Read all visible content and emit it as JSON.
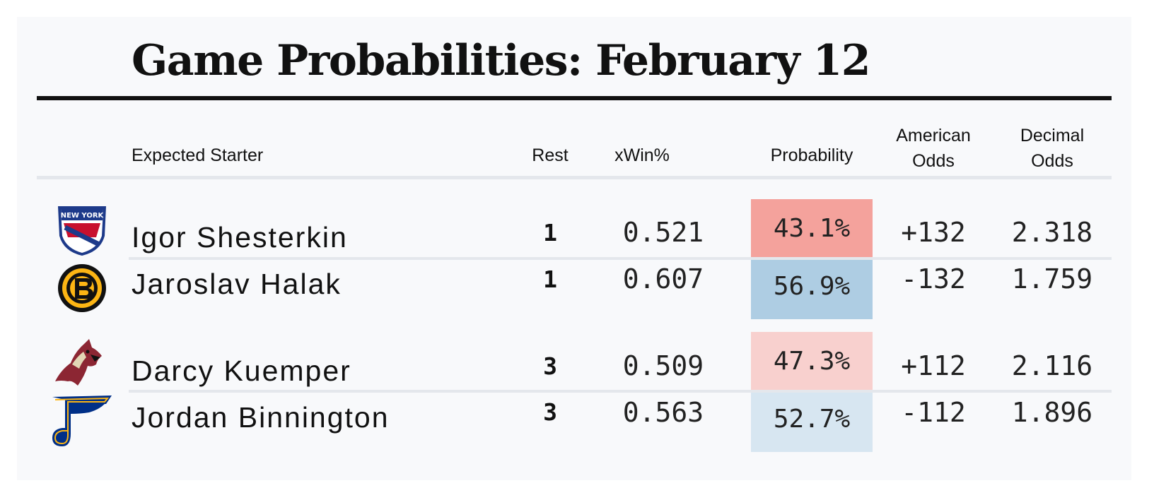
{
  "title": "Game Probabilities: February 12",
  "headers": {
    "starter": "Expected Starter",
    "rest": "Rest",
    "xwin": "xWin%",
    "probability": "Probability",
    "american_line1": "American",
    "american_line2": "Odds",
    "decimal_line1": "Decimal",
    "decimal_line2": "Odds"
  },
  "colors": {
    "underdog_strong": "#f4a29c",
    "favorite_strong": "#aecde3",
    "underdog_light": "#f8d0ce",
    "favorite_light": "#d7e6f1"
  },
  "chart_data": {
    "type": "table",
    "title": "Game Probabilities: February 12",
    "columns": [
      "Expected Starter",
      "Rest",
      "xWin%",
      "Probability",
      "American Odds",
      "Decimal Odds"
    ],
    "games": [
      {
        "teams": [
          {
            "logo": "new-york-rangers-logo",
            "starter": "Igor Shesterkin",
            "rest": "1",
            "xwin": "0.521",
            "probability": "43.1%",
            "probability_value": 0.431,
            "american_odds": "+132",
            "decimal_odds": "2.318"
          },
          {
            "logo": "boston-bruins-logo",
            "starter": "Jaroslav Halak",
            "rest": "1",
            "xwin": "0.607",
            "probability": "56.9%",
            "probability_value": 0.569,
            "american_odds": "-132",
            "decimal_odds": "1.759"
          }
        ]
      },
      {
        "teams": [
          {
            "logo": "arizona-coyotes-logo",
            "starter": "Darcy Kuemper",
            "rest": "3",
            "xwin": "0.509",
            "probability": "47.3%",
            "probability_value": 0.473,
            "american_odds": "+112",
            "decimal_odds": "2.116"
          },
          {
            "logo": "st-louis-blues-logo",
            "starter": "Jordan Binnington",
            "rest": "3",
            "xwin": "0.563",
            "probability": "52.7%",
            "probability_value": 0.527,
            "american_odds": "-112",
            "decimal_odds": "1.896"
          }
        ]
      }
    ]
  }
}
